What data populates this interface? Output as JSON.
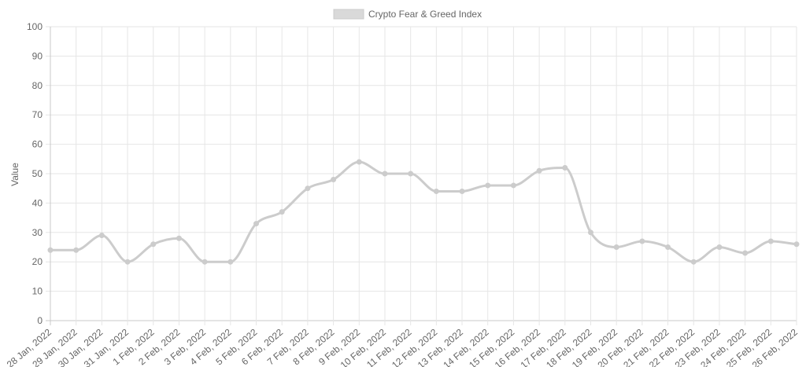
{
  "chart_data": {
    "type": "line",
    "title": "",
    "xlabel": "",
    "ylabel": "Value",
    "ylim": [
      0,
      100
    ],
    "yticks": [
      0,
      10,
      20,
      30,
      40,
      50,
      60,
      70,
      80,
      90,
      100
    ],
    "grid": true,
    "legend_position": "top-center",
    "categories": [
      "28 Jan, 2022",
      "29 Jan, 2022",
      "30 Jan, 2022",
      "31 Jan, 2022",
      "1 Feb, 2022",
      "2 Feb, 2022",
      "3 Feb, 2022",
      "4 Feb, 2022",
      "5 Feb, 2022",
      "6 Feb, 2022",
      "7 Feb, 2022",
      "8 Feb, 2022",
      "9 Feb, 2022",
      "10 Feb, 2022",
      "11 Feb, 2022",
      "12 Feb, 2022",
      "13 Feb, 2022",
      "14 Feb, 2022",
      "15 Feb, 2022",
      "16 Feb, 2022",
      "17 Feb, 2022",
      "18 Feb, 2022",
      "19 Feb, 2022",
      "20 Feb, 2022",
      "21 Feb, 2022",
      "22 Feb, 2022",
      "23 Feb, 2022",
      "24 Feb, 2022",
      "25 Feb, 2022",
      "26 Feb, 2022"
    ],
    "series": [
      {
        "name": "Crypto Fear & Greed Index",
        "color": "#cccccc",
        "values": [
          24,
          24,
          29,
          20,
          26,
          28,
          20,
          20,
          33,
          37,
          45,
          48,
          54,
          50,
          50,
          44,
          44,
          46,
          46,
          51,
          52,
          30,
          25,
          27,
          25,
          20,
          25,
          23,
          27,
          26
        ]
      }
    ]
  }
}
